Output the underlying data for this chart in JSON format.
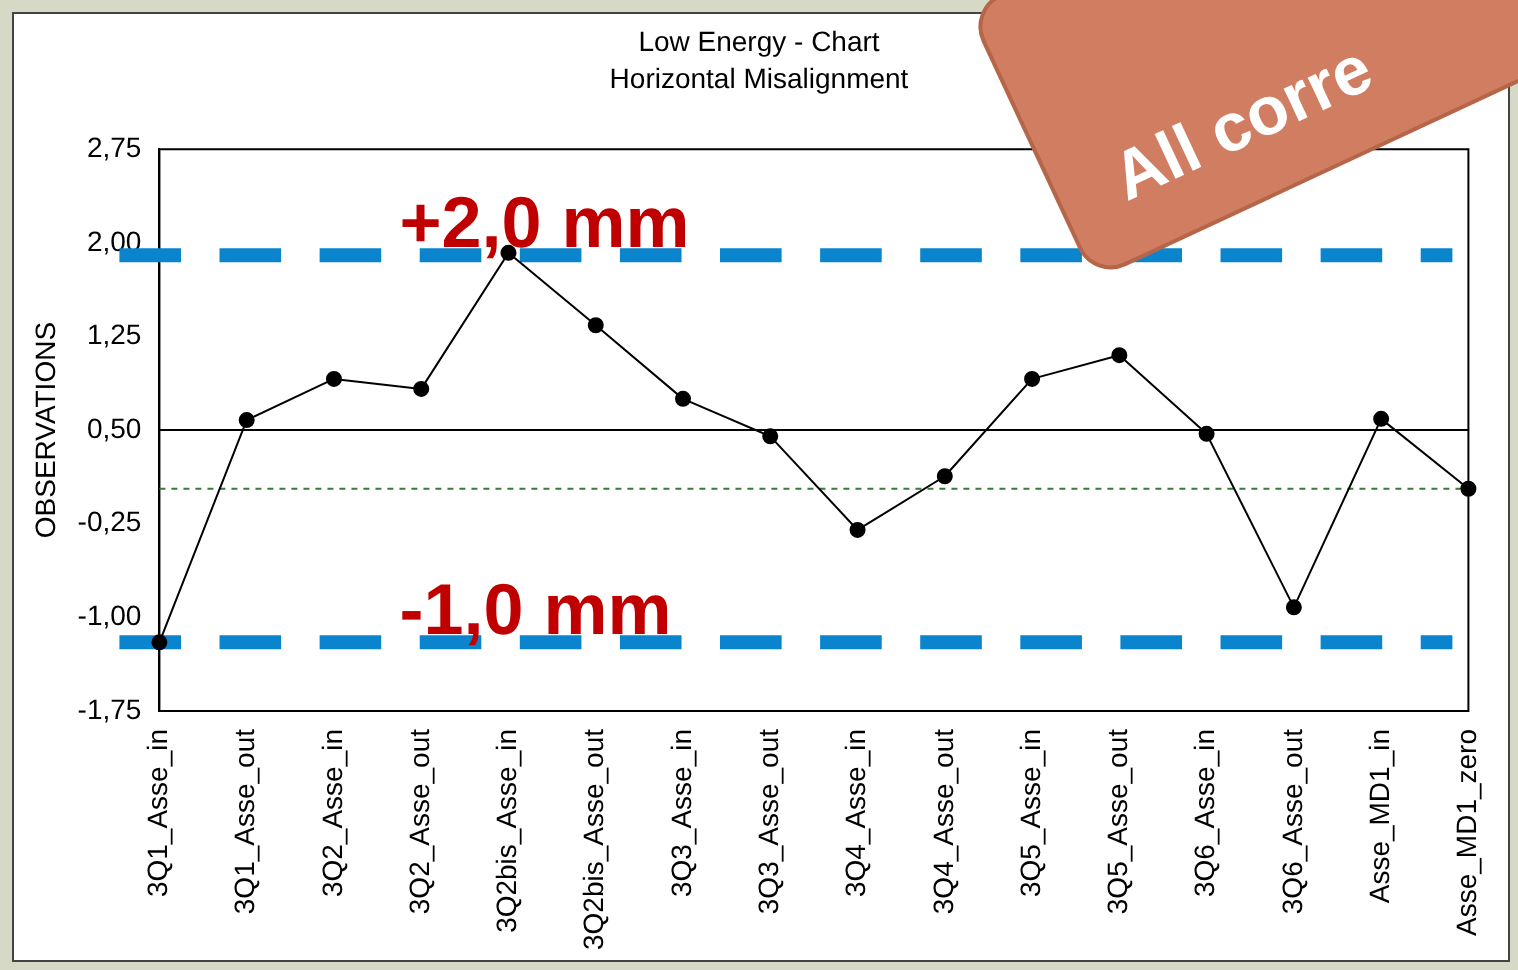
{
  "chart_data": {
    "type": "line",
    "title": "Low Energy - Chart",
    "subtitle": "Horizontal Misalignment",
    "ylabel": "OBSERVATIONS",
    "categories": [
      "3Q1_Asse_in",
      "3Q1_Asse_out",
      "3Q2_Asse_in",
      "3Q2_Asse_out",
      "3Q2bis_Asse_in",
      "3Q2bis_Asse_out",
      "3Q3_Asse_in",
      "3Q3_Asse_out",
      "3Q4_Asse_in",
      "3Q4_Asse_out",
      "3Q5_Asse_in",
      "3Q5_Asse_out",
      "3Q6_Asse_in",
      "3Q6_Asse_out",
      "Asse_MD1_in",
      "Asse_MD1_zero"
    ],
    "series": [
      {
        "color": "#000000",
        "values": [
          -1.2,
          0.58,
          0.91,
          0.83,
          1.92,
          1.34,
          0.75,
          0.45,
          -0.3,
          0.13,
          0.91,
          1.1,
          0.47,
          -0.92,
          0.59,
          0.03
        ]
      }
    ],
    "ylim": [
      -1.75,
      2.75
    ],
    "yticks": [
      {
        "value": 2.75,
        "label": "2,75"
      },
      {
        "value": 2,
        "label": "2,00"
      },
      {
        "value": 1.25,
        "label": "1,25"
      },
      {
        "value": 0.5,
        "label": "0,50"
      },
      {
        "value": -0.25,
        "label": "-0,25"
      },
      {
        "value": -1,
        "label": "-1,00"
      },
      {
        "value": -1.75,
        "label": "-1,75"
      }
    ],
    "ref_lines": [
      {
        "axis": "y",
        "value": 0.5,
        "color": "#000000",
        "line_style": "solid"
      },
      {
        "axis": "y",
        "value": 0.03,
        "color": "#3a7a3a",
        "line_style": "dotted"
      },
      {
        "axis": "y",
        "value": 1.9,
        "color": "#0a84cc",
        "line_style": "dashed",
        "label": "+2,0 mm"
      },
      {
        "axis": "y",
        "value": -1.2,
        "color": "#0a84cc",
        "line_style": "dashed",
        "label": "-1,0 mm"
      }
    ],
    "annotations": [
      "All corre"
    ],
    "grid": false,
    "legend": false,
    "marker": "circle",
    "line_style": "solid"
  }
}
